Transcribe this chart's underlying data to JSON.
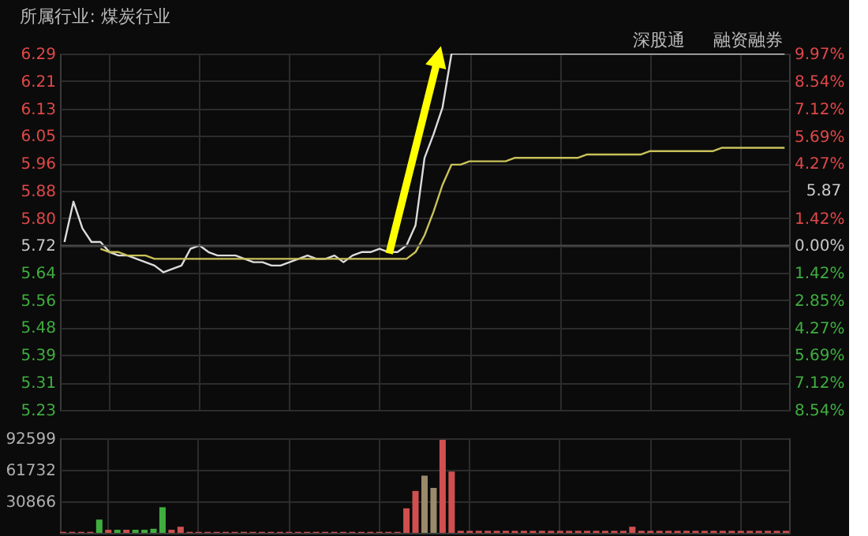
{
  "chart_data": [
    {
      "type": "line",
      "title": "所属行业: 煤炭行业",
      "annotations": [
        "深股通",
        "融资融券",
        "5.87"
      ],
      "categories": [
        null,
        null,
        null,
        null,
        null,
        null,
        null,
        null,
        null,
        null,
        null,
        null,
        null,
        null,
        null,
        null,
        null,
        null,
        null,
        null,
        null,
        null,
        null,
        null,
        null,
        null,
        null,
        null,
        null,
        null,
        null,
        null,
        null,
        null,
        null,
        null,
        null,
        null,
        null,
        null,
        null,
        null,
        null,
        null,
        null,
        null,
        null,
        null,
        null,
        null,
        null,
        null,
        null,
        null,
        null,
        null,
        null,
        null,
        null,
        null,
        null,
        null,
        null,
        null,
        null,
        null,
        null,
        null,
        null,
        null,
        null,
        null,
        null,
        null,
        null,
        null,
        null,
        null,
        null,
        null,
        null
      ],
      "ylim": [
        5.231,
        6.29
      ],
      "yticks": [
        {
          "value": 5.231,
          "label": "5.23"
        },
        {
          "value": 5.313,
          "label": "5.31"
        },
        {
          "value": 5.394,
          "label": "5.39"
        },
        {
          "value": 5.476,
          "label": "5.48"
        },
        {
          "value": 5.557,
          "label": "5.56"
        },
        {
          "value": 5.639,
          "label": "5.64"
        },
        5.72,
        {
          "value": 5.801,
          "label": "5.80"
        },
        {
          "value": 5.883,
          "label": "5.88"
        },
        {
          "value": 5.964,
          "label": "5.96"
        },
        {
          "value": 6.046,
          "label": "6.05"
        },
        {
          "value": 6.127,
          "label": "6.13"
        },
        {
          "value": 6.209,
          "label": "6.21"
        },
        6.29
      ],
      "y2lim": [
        -8.54,
        9.97
      ],
      "y2ticks": [
        {
          "value": 9.97,
          "label": "9.97%"
        },
        {
          "value": 8.54,
          "label": "8.54%"
        },
        {
          "value": 7.12,
          "label": "7.12%"
        },
        {
          "value": 5.69,
          "label": "5.69%"
        },
        {
          "value": 4.27,
          "label": "4.27%"
        },
        {
          "value": 1.42,
          "label": "1.42%"
        },
        {
          "value": 0,
          "label": "0.00%"
        },
        {
          "value": -1.42,
          "label": "1.42%"
        },
        {
          "value": -2.85,
          "label": "2.85%"
        },
        {
          "value": -4.27,
          "label": "4.27%"
        },
        {
          "value": -5.69,
          "label": "5.69%"
        },
        {
          "value": -7.12,
          "label": "7.12%"
        },
        {
          "value": -8.54,
          "label": "8.54%"
        }
      ],
      "ref_lines": [
        {
          "axis": "y2",
          "value": 0,
          "color": "#4a4a4a"
        }
      ],
      "grid": true,
      "legend": false,
      "tick_labels": "y",
      "marker": "none",
      "line_style": "solid",
      "series": [
        {
          "color": "#dcdcdc",
          "values": [
            5.73,
            5.85,
            5.77,
            5.73,
            5.73,
            5.7,
            5.69,
            5.69,
            5.68,
            5.67,
            5.66,
            5.64,
            5.65,
            5.66,
            5.71,
            5.72,
            5.7,
            5.69,
            5.69,
            5.69,
            5.68,
            5.67,
            5.67,
            5.66,
            5.66,
            5.67,
            5.68,
            5.69,
            5.68,
            5.68,
            5.69,
            5.67,
            5.69,
            5.7,
            5.7,
            5.71,
            5.7,
            5.7,
            5.72,
            5.78,
            5.98,
            6.05,
            6.13,
            6.29,
            6.29,
            6.29,
            6.29,
            6.29,
            6.29,
            6.29,
            6.29,
            6.29,
            6.29,
            6.29,
            6.29,
            6.29,
            6.29,
            6.29,
            6.29,
            6.29,
            6.29,
            6.29,
            6.29,
            6.29,
            6.29,
            6.29,
            6.29,
            6.29,
            6.29,
            6.29,
            6.29,
            6.29,
            6.29,
            6.29,
            6.29,
            6.29,
            6.29,
            6.29,
            6.29,
            6.29,
            6.29
          ]
        },
        {
          "color": "#c9c15a",
          "values": [
            null,
            null,
            null,
            null,
            5.71,
            5.7,
            5.7,
            5.69,
            5.69,
            5.69,
            5.68,
            5.68,
            5.68,
            5.68,
            5.68,
            5.68,
            5.68,
            5.68,
            5.68,
            5.68,
            5.68,
            5.68,
            5.68,
            5.68,
            5.68,
            5.68,
            5.68,
            5.68,
            5.68,
            5.68,
            5.68,
            5.68,
            5.68,
            5.68,
            5.68,
            5.68,
            5.68,
            5.68,
            5.68,
            5.7,
            5.75,
            5.82,
            5.9,
            5.96,
            5.96,
            5.97,
            5.97,
            5.97,
            5.97,
            5.97,
            5.98,
            5.98,
            5.98,
            5.98,
            5.98,
            5.98,
            5.98,
            5.98,
            5.99,
            5.99,
            5.99,
            5.99,
            5.99,
            5.99,
            5.99,
            6.0,
            6.0,
            6.0,
            6.0,
            6.0,
            6.0,
            6.0,
            6.0,
            6.01,
            6.01,
            6.01,
            6.01,
            6.01,
            6.01,
            6.01,
            6.01
          ]
        }
      ]
    },
    {
      "type": "bar",
      "categories": [
        null,
        null,
        null,
        null,
        null,
        null,
        null,
        null,
        null,
        null,
        null,
        null,
        null,
        null,
        null,
        null,
        null,
        null,
        null,
        null,
        null,
        null,
        null,
        null,
        null,
        null,
        null,
        null,
        null,
        null,
        null,
        null,
        null,
        null,
        null,
        null,
        null,
        null,
        null,
        null,
        null,
        null,
        null,
        null,
        null,
        null,
        null,
        null,
        null,
        null,
        null,
        null,
        null,
        null,
        null,
        null,
        null,
        null,
        null,
        null,
        null,
        null,
        null,
        null,
        null,
        null,
        null,
        null,
        null,
        null,
        null,
        null,
        null,
        null,
        null,
        null,
        null,
        null,
        null,
        null,
        null
      ],
      "ylim": [
        0,
        92599
      ],
      "yticks": [
        30866,
        61732,
        92599
      ],
      "grid": true,
      "tick_labels": "y",
      "values": [
        1000,
        1000,
        1000,
        1000,
        13000,
        3000,
        3000,
        3000,
        3000,
        3000,
        4000,
        25000,
        3000,
        6000,
        1000,
        1000,
        1000,
        1000,
        1000,
        1000,
        1000,
        1000,
        1000,
        1000,
        1000,
        1000,
        1000,
        1000,
        1000,
        1000,
        1000,
        1000,
        1000,
        1000,
        1000,
        1000,
        1000,
        1000,
        24000,
        41000,
        56000,
        44000,
        91000,
        60000,
        2000,
        2000,
        2000,
        2000,
        2000,
        2000,
        2000,
        2000,
        2000,
        2000,
        2000,
        2000,
        2000,
        2000,
        2000,
        2000,
        2000,
        2000,
        2000,
        6000,
        2000,
        2000,
        2000,
        2000,
        2000,
        2000,
        2000,
        2000,
        2000,
        2000,
        2000,
        2000,
        2000,
        2000,
        2000,
        2000,
        2000
      ],
      "colors": [
        "#d05050",
        "#d05050",
        "#d05050",
        "#d05050",
        "#3fae3f",
        "#d05050",
        "#3fae3f",
        "#d05050",
        "#3fae3f",
        "#3fae3f",
        "#3fae3f",
        "#3fae3f",
        "#d05050",
        "#d05050",
        "#d05050",
        "#d05050",
        "#d05050",
        "#d05050",
        "#d05050",
        "#d05050",
        "#d05050",
        "#d05050",
        "#d05050",
        "#d05050",
        "#d05050",
        "#d05050",
        "#d05050",
        "#d05050",
        "#d05050",
        "#d05050",
        "#d05050",
        "#d05050",
        "#d05050",
        "#d05050",
        "#d05050",
        "#d05050",
        "#d05050",
        "#d05050",
        "#d05050",
        "#d05050",
        "#9a8a6a",
        "#9a8a6a",
        "#d05050",
        "#d05050",
        "#d05050",
        "#d05050",
        "#d05050",
        "#d05050",
        "#d05050",
        "#d05050",
        "#d05050",
        "#d05050",
        "#d05050",
        "#d05050",
        "#d05050",
        "#d05050",
        "#d05050",
        "#d05050",
        "#d05050",
        "#d05050",
        "#d05050",
        "#d05050",
        "#d05050",
        "#d05050",
        "#d05050",
        "#d05050",
        "#d05050",
        "#d05050",
        "#d05050",
        "#d05050",
        "#d05050",
        "#d05050",
        "#d05050",
        "#d05050",
        "#d05050",
        "#d05050",
        "#d05050",
        "#d05050",
        "#d05050",
        "#d05050",
        "#d05050"
      ]
    }
  ]
}
